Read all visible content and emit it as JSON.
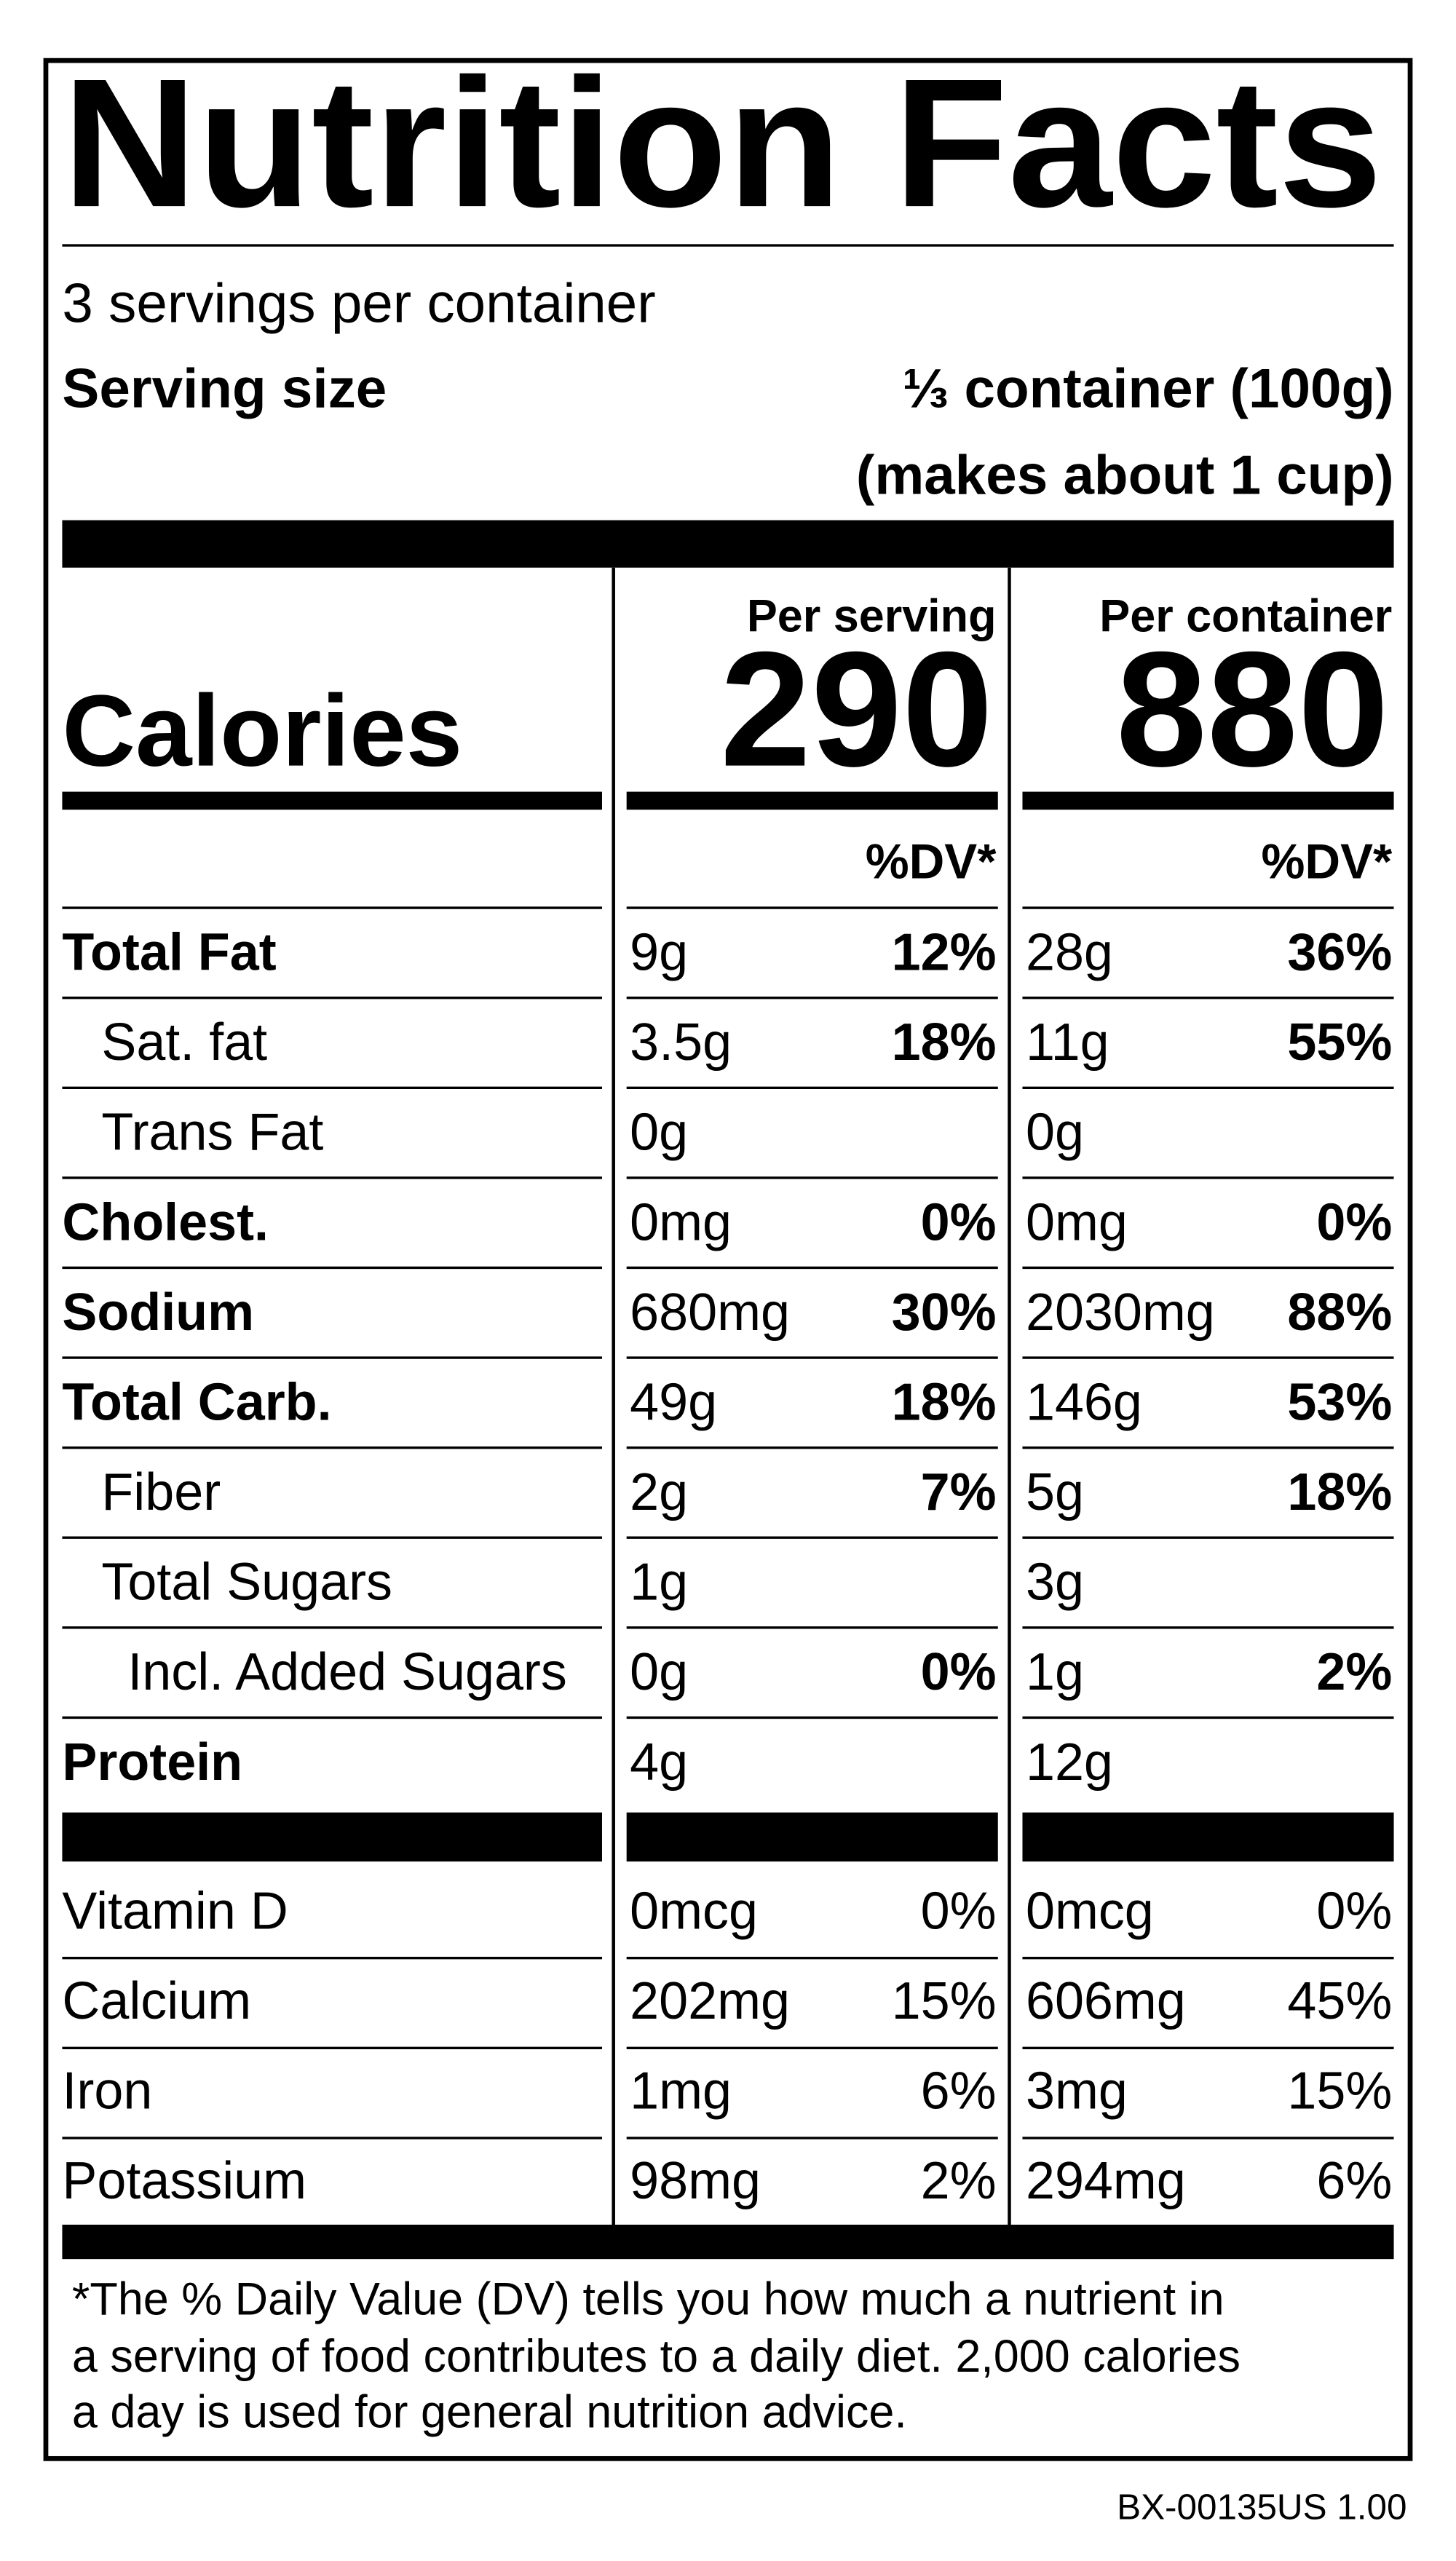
{
  "header": {
    "title": "Nutrition Facts",
    "servings": "3 servings per container",
    "serving_size_label": "Serving size",
    "serving_size_value": [
      "⅓ container (100g)",
      "(makes about 1 cup)"
    ]
  },
  "calories": {
    "label": "Calories",
    "columns": [
      {
        "heading": "Per serving",
        "value": 290
      },
      {
        "heading": "Per container",
        "value": 880
      }
    ]
  },
  "dv_heading": [
    "%DV*",
    "%DV*"
  ],
  "nutrients": [
    {
      "name": "Total Fat",
      "bold": true,
      "indent": 0,
      "cells": [
        [
          "9g",
          "12%"
        ],
        [
          "28g",
          "36%"
        ]
      ]
    },
    {
      "name": "Sat. fat",
      "bold": false,
      "indent": 1,
      "cells": [
        [
          "3.5g",
          "18%"
        ],
        [
          "11g",
          "55%"
        ]
      ]
    },
    {
      "name": "Trans Fat",
      "bold": false,
      "indent": 1,
      "cells": [
        [
          "0g"
        ],
        [
          "0g"
        ]
      ]
    },
    {
      "name": "Cholest.",
      "bold": true,
      "indent": 0,
      "cells": [
        [
          "0mg",
          "0%"
        ],
        [
          "0mg",
          "0%"
        ]
      ]
    },
    {
      "name": "Sodium",
      "bold": true,
      "indent": 0,
      "cells": [
        [
          "680mg",
          "30%"
        ],
        [
          "2030mg",
          "88%"
        ]
      ]
    },
    {
      "name": "Total Carb.",
      "bold": true,
      "indent": 0,
      "cells": [
        [
          "49g",
          "18%"
        ],
        [
          "146g",
          "53%"
        ]
      ]
    },
    {
      "name": "Fiber",
      "bold": false,
      "indent": 1,
      "cells": [
        [
          "2g",
          "7%"
        ],
        [
          "5g",
          "18%"
        ]
      ]
    },
    {
      "name": "Total Sugars",
      "bold": false,
      "indent": 1,
      "cells": [
        [
          "1g"
        ],
        [
          "3g"
        ]
      ]
    },
    {
      "name": "Incl. Added Sugars",
      "bold": false,
      "indent": 2,
      "cells": [
        [
          "0g",
          "0%"
        ],
        [
          "1g",
          "2%"
        ]
      ]
    },
    {
      "name": "Protein",
      "bold": true,
      "indent": 0,
      "cells": [
        [
          "4g"
        ],
        [
          "12g"
        ]
      ]
    }
  ],
  "vitamins": [
    {
      "name": "Vitamin D",
      "cells": [
        [
          "0mcg",
          "0%"
        ],
        [
          "0mcg",
          "0%"
        ]
      ]
    },
    {
      "name": "Calcium",
      "cells": [
        [
          "202mg",
          "15%"
        ],
        [
          "606mg",
          "45%"
        ]
      ]
    },
    {
      "name": "Iron",
      "cells": [
        [
          "1mg",
          "6%"
        ],
        [
          "3mg",
          "15%"
        ]
      ]
    },
    {
      "name": "Potassium",
      "cells": [
        [
          "98mg",
          "2%"
        ],
        [
          "294mg",
          "6%"
        ]
      ]
    }
  ],
  "footnote": [
    "*The % Daily Value (DV) tells you how much a nutrient in",
    "a serving of food contributes to a daily diet. 2,000 calories",
    "a day is used for general nutrition advice."
  ],
  "code": "BX-00135US 1.00"
}
